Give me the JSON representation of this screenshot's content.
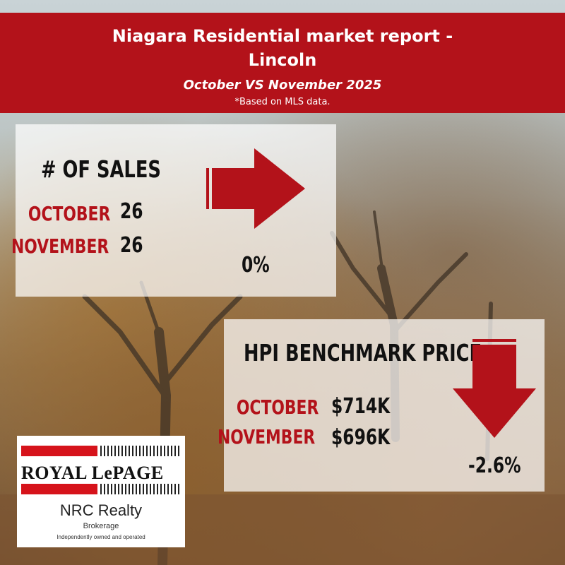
{
  "header": {
    "title_line1": "Niagara Residential market report -",
    "title_line2": "Lincoln",
    "subtitle": "October VS November 2025",
    "note": "*Based on MLS data."
  },
  "sales": {
    "heading": "# OF SALES",
    "october_label": "OCTOBER",
    "october_value": "26",
    "november_label": "NOVEMBER",
    "november_value": "26",
    "change": "0%",
    "arrow": "arrow-right-icon"
  },
  "hpi": {
    "heading": "HPI BENCHMARK PRICE",
    "october_label": "OCTOBER",
    "october_value": "$714K",
    "november_label": "NOVEMBER",
    "november_value": "$696K",
    "change": "-2.6%",
    "arrow": "arrow-down-icon"
  },
  "logo": {
    "brand": "ROYAL LePAGE",
    "office": "NRC Realty",
    "type": "Brokerage",
    "tagline": "Independently owned and operated"
  },
  "colors": {
    "accent_red": "#b3121a",
    "text_dark": "#111111"
  }
}
